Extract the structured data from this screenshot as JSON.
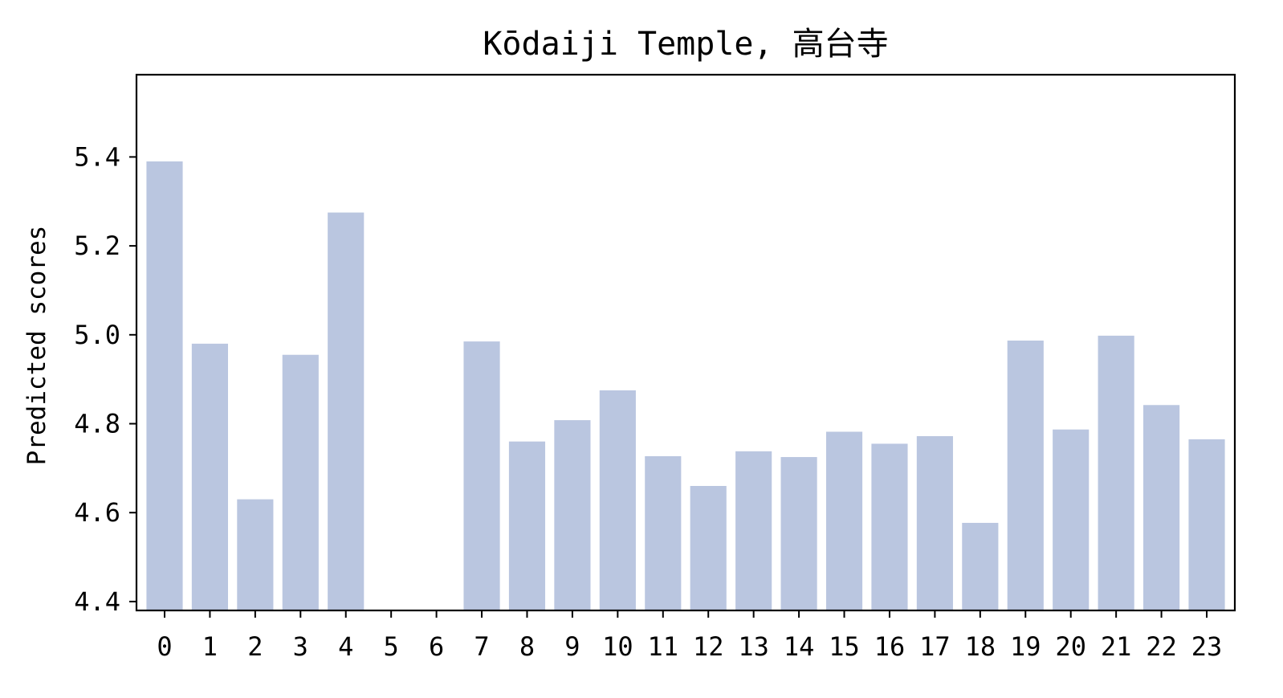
{
  "chart_data": {
    "type": "bar",
    "title": "Kōdaiji Temple, 高台寺",
    "xlabel": "",
    "ylabel": "Predicted scores",
    "categories": [
      "0",
      "1",
      "2",
      "3",
      "4",
      "5",
      "6",
      "7",
      "8",
      "9",
      "10",
      "11",
      "12",
      "13",
      "14",
      "15",
      "16",
      "17",
      "18",
      "19",
      "20",
      "21",
      "22",
      "23"
    ],
    "values": [
      5.39,
      4.98,
      4.63,
      4.955,
      5.275,
      null,
      null,
      4.985,
      4.76,
      4.808,
      4.875,
      4.727,
      4.66,
      4.738,
      4.725,
      4.782,
      4.755,
      4.772,
      4.577,
      4.987,
      4.787,
      4.998,
      4.842,
      4.765
    ],
    "ylim": [
      4.38,
      5.585
    ],
    "yticks": [
      4.4,
      4.6,
      4.8,
      5.0,
      5.2,
      5.4
    ],
    "ytick_labels": [
      "4.4",
      "4.6",
      "4.8",
      "5.0",
      "5.2",
      "5.4"
    ],
    "bar_color": "#bac6e0",
    "grid": false,
    "legend": "none"
  }
}
